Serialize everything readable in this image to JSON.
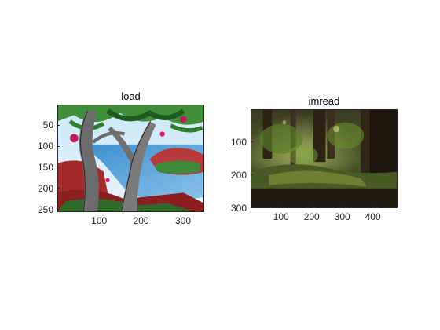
{
  "figure": {
    "background": "#ffffff",
    "axes_color": "#262626"
  },
  "panels": [
    {
      "title": "load",
      "image_name": "landscape-painting-image",
      "xlim": [
        0.5,
        350.5
      ],
      "ylim": [
        0.5,
        256.5
      ],
      "xticks": [
        100,
        200,
        300
      ],
      "yticks": [
        50,
        100,
        150,
        200,
        250
      ]
    },
    {
      "title": "imread",
      "image_name": "forest-photo-image",
      "xlim": [
        0.5,
        480.5
      ],
      "ylim": [
        0.5,
        300.5
      ],
      "xticks": [
        100,
        200,
        300,
        400
      ],
      "yticks": [
        100,
        200,
        300
      ]
    }
  ]
}
